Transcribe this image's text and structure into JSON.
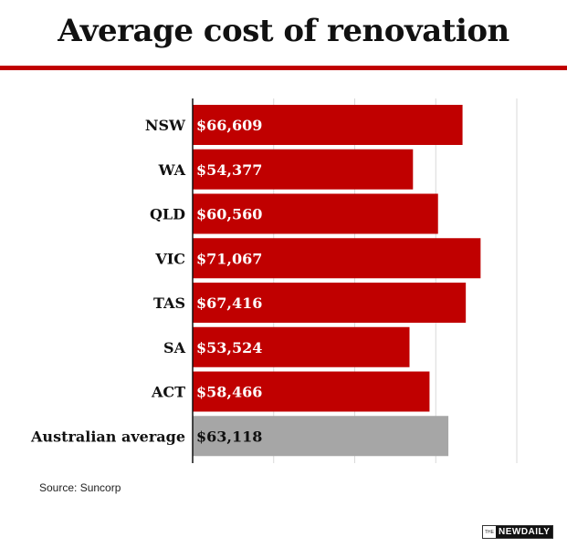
{
  "title": "Average cost of renovation",
  "source": "Source: Suncorp",
  "brand": {
    "prefix": "THE",
    "name": "NEWDAILY"
  },
  "colors": {
    "bar": "#c00000",
    "average_bar": "#a6a6a6",
    "accent": "#c00000"
  },
  "chart_data": {
    "type": "bar",
    "orientation": "horizontal",
    "categories": [
      "NSW",
      "WA",
      "QLD",
      "VIC",
      "TAS",
      "SA",
      "ACT",
      "Australian average"
    ],
    "values": [
      66609,
      54377,
      60560,
      71067,
      67416,
      53524,
      58466,
      63118
    ],
    "value_labels": [
      "$66,609",
      "$54,377",
      "$60,560",
      "$71,067",
      "$67,416",
      "$53,524",
      "$58,466",
      "$63,118"
    ],
    "highlight_category": "Australian average",
    "xlim": [
      0,
      80000
    ],
    "grid": true,
    "gridlines": [
      20000,
      40000,
      60000,
      80000
    ]
  }
}
